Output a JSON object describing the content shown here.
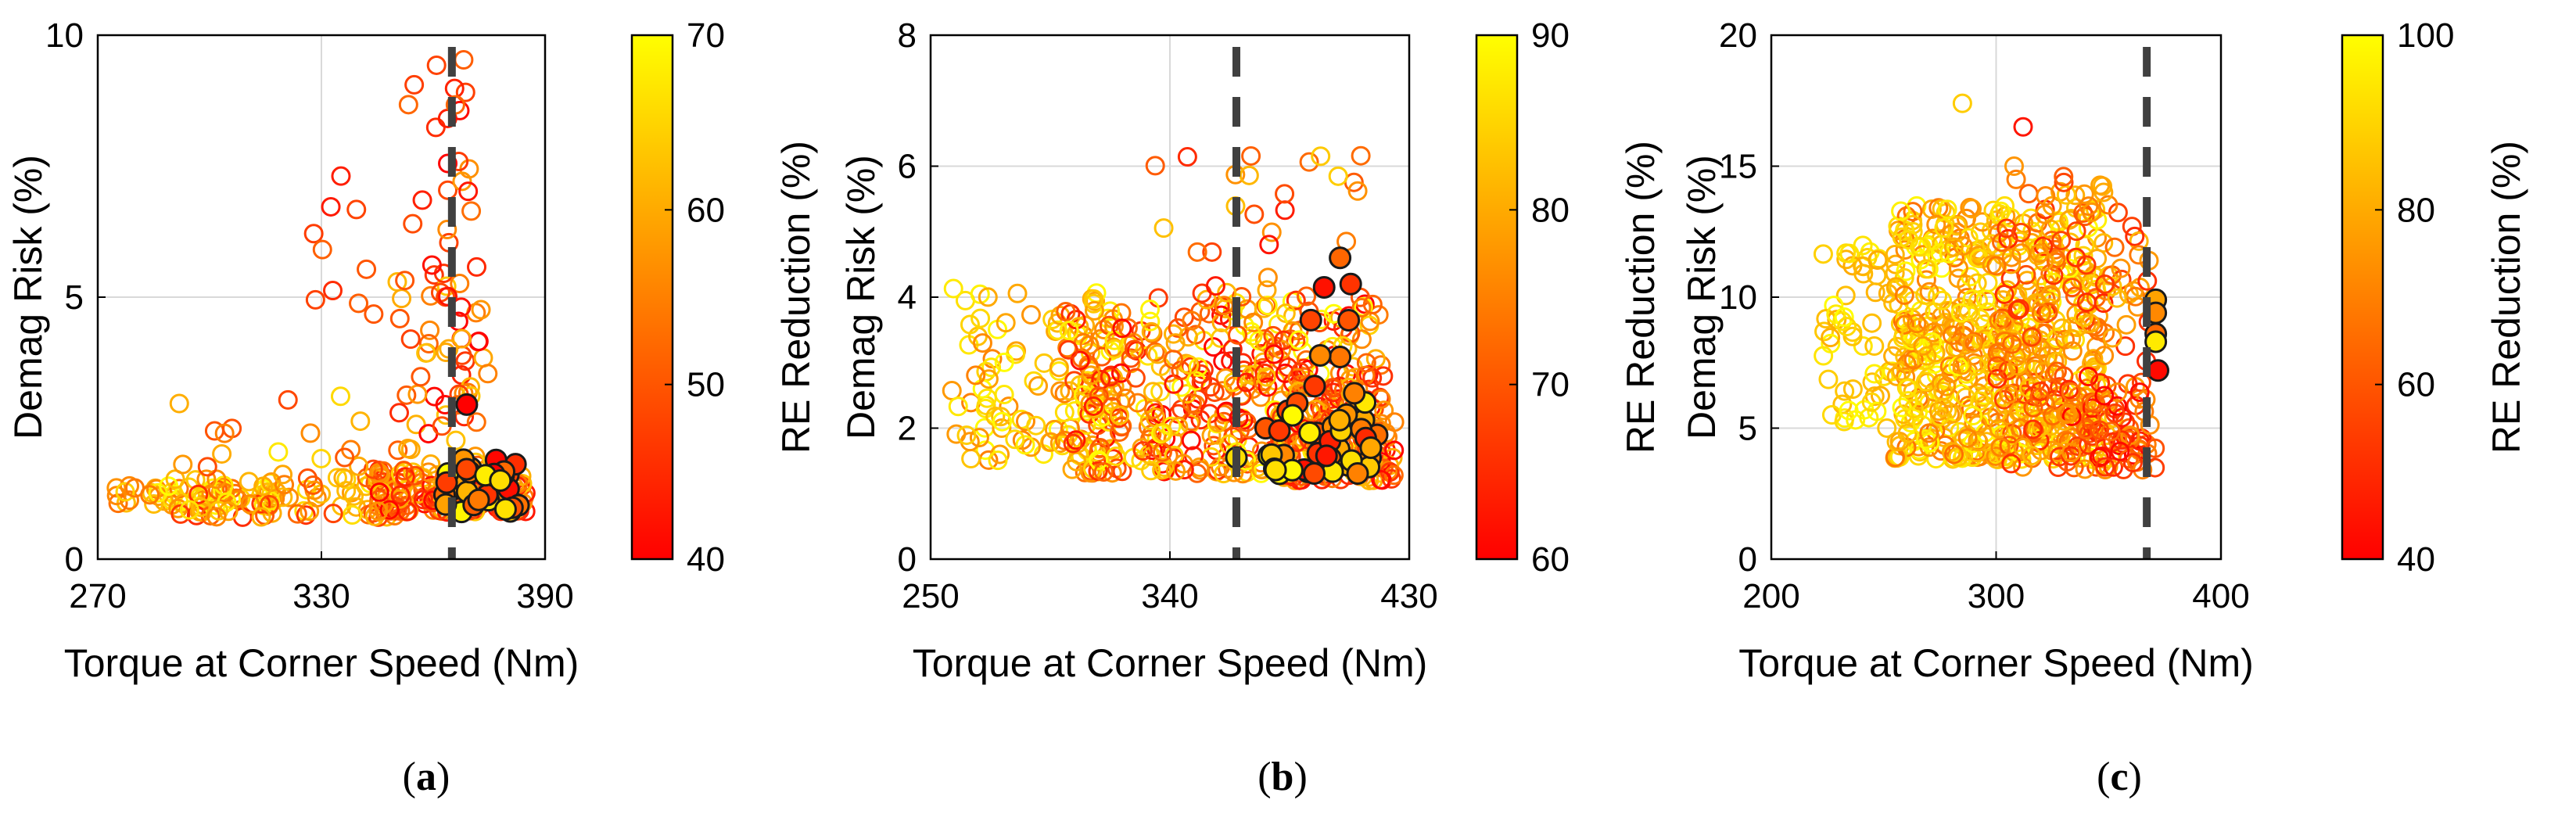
{
  "chart_data": [
    {
      "type": "scatter",
      "panel": "a",
      "caption_prefix": "(",
      "caption_letter": "a",
      "caption_suffix": ")",
      "xlabel": "Torque at Corner Speed (Nm)",
      "ylabel": "Demag Risk (%)",
      "xlim": [
        270,
        390
      ],
      "ylim": [
        0,
        10
      ],
      "xticks": [
        270,
        330,
        390
      ],
      "yticks": [
        0,
        5,
        10
      ],
      "grid": true,
      "reference_line_x": 365,
      "colorbar": {
        "label": "RE Reduction (%)",
        "range": [
          40,
          70
        ],
        "ticks": [
          40,
          50,
          60,
          70
        ]
      },
      "series": [
        {
          "marker": "open-circle",
          "cloud": [
            {
              "x": [
                275,
                320
              ],
              "y": [
                1.0,
                1.4
              ],
              "c": [
                52,
                70
              ],
              "n": 60
            },
            {
              "x": [
                290,
                350
              ],
              "y": [
                0.8,
                1.6
              ],
              "c": [
                45,
                68
              ],
              "n": 70
            },
            {
              "x": [
                345,
                385
              ],
              "y": [
                0.9,
                1.7
              ],
              "c": [
                40,
                65
              ],
              "n": 170
            },
            {
              "x": [
                290,
                345
              ],
              "y": [
                1.5,
                3.2
              ],
              "c": [
                48,
                68
              ],
              "n": 22
            },
            {
              "x": [
                350,
                375
              ],
              "y": [
                1.5,
                5.5
              ],
              "c": [
                40,
                64
              ],
              "n": 60
            },
            {
              "x": [
                352,
                372
              ],
              "y": [
                5.0,
                9.6
              ],
              "c": [
                40,
                58
              ],
              "n": 28
            },
            {
              "x": [
                318,
                345
              ],
              "y": [
                4.5,
                8.0
              ],
              "c": [
                42,
                52
              ],
              "n": 10
            }
          ]
        },
        {
          "marker": "filled-circle-black-edge",
          "cloud": [
            {
              "x": [
                363,
                383
              ],
              "y": [
                0.9,
                2.0
              ],
              "c": [
                40,
                70
              ],
              "n": 30
            }
          ],
          "points": [
            {
              "x": 369,
              "y": 2.95,
              "c": 40
            },
            {
              "x": 374,
              "y": 1.6,
              "c": 68
            },
            {
              "x": 378,
              "y": 1.5,
              "c": 66
            }
          ]
        }
      ]
    },
    {
      "type": "scatter",
      "panel": "b",
      "caption_prefix": "(",
      "caption_letter": "b",
      "caption_suffix": ")",
      "xlabel": "Torque at Corner Speed (Nm)",
      "ylabel": "Demag Risk (%)",
      "xlim": [
        250,
        430
      ],
      "ylim": [
        0,
        8
      ],
      "xticks": [
        250,
        340,
        430
      ],
      "yticks": [
        0,
        2,
        4,
        6,
        8
      ],
      "grid": true,
      "reference_line_x": 365,
      "colorbar": {
        "label": "RE Reduction (%)",
        "range": [
          60,
          90
        ],
        "ticks": [
          60,
          70,
          80,
          90
        ]
      },
      "series": [
        {
          "marker": "open-circle",
          "cloud": [
            {
              "x": [
                258,
                320
              ],
              "y": [
                1.5,
                4.2
              ],
              "c": [
                74,
                90
              ],
              "n": 110
            },
            {
              "x": [
                300,
                420
              ],
              "y": [
                1.3,
                4.0
              ],
              "c": [
                60,
                90
              ],
              "n": 420
            },
            {
              "x": [
                380,
                425
              ],
              "y": [
                1.2,
                3.0
              ],
              "c": [
                60,
                82
              ],
              "n": 140
            },
            {
              "x": [
                330,
                420
              ],
              "y": [
                4.0,
                6.2
              ],
              "c": [
                62,
                85
              ],
              "n": 28
            }
          ]
        },
        {
          "marker": "filled-circle-black-edge",
          "cloud": [
            {
              "x": [
                375,
                418
              ],
              "y": [
                1.3,
                2.4
              ],
              "c": [
                60,
                90
              ],
              "n": 40
            },
            {
              "x": [
                385,
                412
              ],
              "y": [
                2.5,
                3.7
              ],
              "c": [
                66,
                78
              ],
              "n": 5
            }
          ],
          "points": [
            {
              "x": 365,
              "y": 1.55,
              "c": 86
            },
            {
              "x": 404,
              "y": 4.6,
              "c": 72
            },
            {
              "x": 408,
              "y": 4.2,
              "c": 66
            },
            {
              "x": 398,
              "y": 4.15,
              "c": 62
            },
            {
              "x": 393,
              "y": 3.65,
              "c": 68
            }
          ]
        }
      ]
    },
    {
      "type": "scatter",
      "panel": "c",
      "caption_prefix": "(",
      "caption_letter": "c",
      "caption_suffix": ")",
      "xlabel": "Torque at Corner Speed (Nm)",
      "ylabel": "Demag Risk (%)",
      "xlim": [
        200,
        400
      ],
      "ylim": [
        0,
        20
      ],
      "xticks": [
        200,
        300,
        400
      ],
      "yticks": [
        0,
        5,
        10,
        15,
        20
      ],
      "grid": true,
      "reference_line_x": 367,
      "colorbar": {
        "label": "RE Reduction (%)",
        "range": [
          40,
          100
        ],
        "ticks": [
          40,
          60,
          80,
          100
        ]
      },
      "series": [
        {
          "marker": "open-circle",
          "cloud": [
            {
              "x": [
                222,
                280
              ],
              "y": [
                5.0,
                12.0
              ],
              "c": [
                80,
                100
              ],
              "n": 90
            },
            {
              "x": [
                255,
                345
              ],
              "y": [
                3.8,
                13.5
              ],
              "c": [
                65,
                100
              ],
              "n": 520
            },
            {
              "x": [
                300,
                368
              ],
              "y": [
                3.5,
                14.5
              ],
              "c": [
                48,
                88
              ],
              "n": 200
            },
            {
              "x": [
                330,
                372
              ],
              "y": [
                3.4,
                7.0
              ],
              "c": [
                40,
                75
              ],
              "n": 60
            }
          ],
          "points": [
            {
              "x": 285,
              "y": 17.4,
              "c": 88
            },
            {
              "x": 312,
              "y": 16.5,
              "c": 45
            },
            {
              "x": 330,
              "y": 14.6,
              "c": 62
            },
            {
              "x": 308,
              "y": 15.0,
              "c": 75
            }
          ]
        },
        {
          "marker": "filled-circle-black-edge",
          "points": [
            {
              "x": 371,
              "y": 9.9,
              "c": 78
            },
            {
              "x": 371,
              "y": 9.4,
              "c": 72
            },
            {
              "x": 371,
              "y": 8.6,
              "c": 65
            },
            {
              "x": 371,
              "y": 8.3,
              "c": 95
            },
            {
              "x": 372,
              "y": 7.2,
              "c": 42
            }
          ]
        }
      ]
    }
  ]
}
